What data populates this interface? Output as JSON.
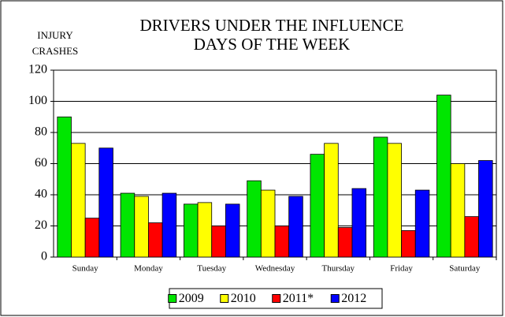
{
  "chart_data": {
    "type": "bar",
    "title": "DRIVERS UNDER THE INFLUENCE",
    "subtitle": "DAYS OF THE WEEK",
    "ylabel": [
      "INJURY",
      "CRASHES"
    ],
    "categories": [
      "Sunday",
      "Monday",
      "Tuesday",
      "Wednesday",
      "Thursday",
      "Friday",
      "Saturday"
    ],
    "series": [
      {
        "name": "2009",
        "color": "#00e600",
        "values": [
          90,
          41,
          34,
          49,
          66,
          77,
          104
        ]
      },
      {
        "name": "2010",
        "color": "#ffff00",
        "values": [
          73,
          39,
          35,
          43,
          73,
          73,
          60
        ]
      },
      {
        "name": "2011*",
        "color": "#ff0000",
        "values": [
          25,
          22,
          20,
          20,
          19,
          17,
          26
        ]
      },
      {
        "name": "2012",
        "color": "#0000ff",
        "values": [
          70,
          41,
          34,
          39,
          44,
          43,
          62
        ]
      }
    ],
    "ylim": [
      0,
      120
    ],
    "yticks": [
      0,
      20,
      40,
      60,
      80,
      100,
      120
    ],
    "grid": true,
    "legend": "bottom"
  }
}
